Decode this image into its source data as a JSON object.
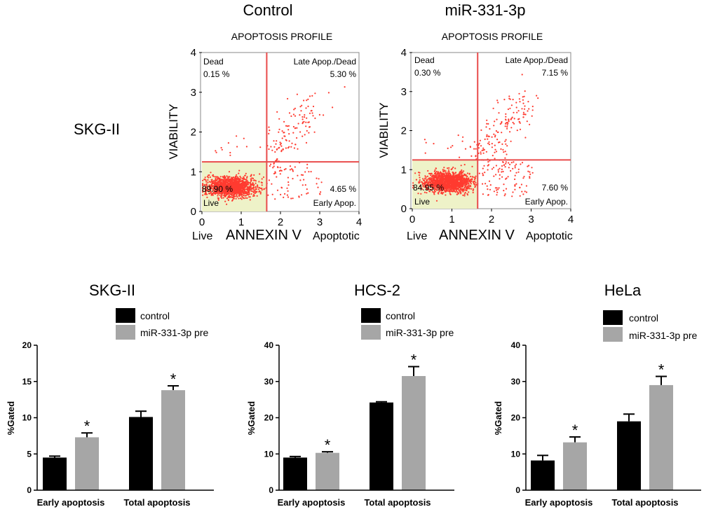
{
  "chart_data": [
    {
      "type": "scatter",
      "title": "Control",
      "subtitle": "APOPTOSIS PROFILE",
      "row_label": "SKG-II",
      "xlabel": "ANNEXIN V",
      "x_left_label": "Live",
      "x_right_label": "Apoptotic",
      "ylabel": "VIABILITY",
      "xlim": [
        0,
        4
      ],
      "ylim": [
        0,
        4
      ],
      "x_ticks": [
        "0",
        "1",
        "2",
        "3",
        "4"
      ],
      "y_ticks": [
        "0",
        "1",
        "2",
        "3",
        "4"
      ],
      "gates": {
        "x": 1.65,
        "y": 1.25
      },
      "quadrants": {
        "dead": {
          "label": "Dead",
          "pct": "0.15 %"
        },
        "late": {
          "label": "Late Apop./Dead",
          "pct": "5.30 %"
        },
        "live": {
          "label": "Live",
          "pct": "89.90 %"
        },
        "early": {
          "label": "Early Apop.",
          "pct": "4.65 %"
        }
      },
      "population": {
        "live_center": [
          0.75,
          0.62
        ],
        "late_spread": "moderate"
      },
      "colors": {
        "points": "#ff3b30",
        "gates": "#e94b4b",
        "live_fill": "#eef2c8"
      }
    },
    {
      "type": "scatter",
      "title": "miR-331-3p",
      "subtitle": "APOPTOSIS PROFILE",
      "xlabel": "ANNEXIN V",
      "x_left_label": "Live",
      "x_right_label": "Apoptotic",
      "ylabel": "VIABILITY",
      "xlim": [
        0,
        4
      ],
      "ylim": [
        0,
        4
      ],
      "x_ticks": [
        "0",
        "1",
        "2",
        "3",
        "4"
      ],
      "y_ticks": [
        "0",
        "1",
        "2",
        "3",
        "4"
      ],
      "gates": {
        "x": 1.65,
        "y": 1.25
      },
      "quadrants": {
        "dead": {
          "label": "Dead",
          "pct": "0.30 %"
        },
        "late": {
          "label": "Late Apop./Dead",
          "pct": "7.15 %"
        },
        "live": {
          "label": "Live",
          "pct": "84.95 %"
        },
        "early": {
          "label": "Early Apop.",
          "pct": "7.60 %"
        }
      },
      "population": {
        "live_center": [
          0.9,
          0.68
        ],
        "late_spread": "higher"
      },
      "colors": {
        "points": "#ff3b30",
        "gates": "#e94b4b",
        "live_fill": "#eef2c8"
      }
    },
    {
      "type": "bar",
      "title": "SKG-II",
      "categories": [
        "Early apoptosis",
        "Total apoptosis"
      ],
      "series": [
        {
          "name": "control",
          "values": [
            4.5,
            10.1
          ],
          "errors": [
            0.2,
            0.8
          ],
          "color": "#000000"
        },
        {
          "name": "miR-331-3p pre",
          "values": [
            7.3,
            13.8
          ],
          "errors": [
            0.6,
            0.6
          ],
          "color": "#a6a6a6"
        }
      ],
      "significance": [
        "*",
        "*"
      ],
      "ylabel": "%Gated",
      "ylim": [
        0,
        20
      ],
      "y_ticks": [
        "0",
        "5",
        "10",
        "15",
        "20"
      ]
    },
    {
      "type": "bar",
      "title": "HCS-2",
      "categories": [
        "Early apoptosis",
        "Total apoptosis"
      ],
      "series": [
        {
          "name": "control",
          "values": [
            9.0,
            24.2
          ],
          "errors": [
            0.3,
            0.2
          ],
          "color": "#000000"
        },
        {
          "name": "miR-331-3p pre",
          "values": [
            10.3,
            31.5
          ],
          "errors": [
            0.3,
            2.6
          ],
          "color": "#a6a6a6"
        }
      ],
      "significance": [
        "*",
        "*"
      ],
      "ylabel": "%Gated",
      "ylim": [
        0,
        40
      ],
      "y_ticks": [
        "0",
        "10",
        "20",
        "30",
        "40"
      ]
    },
    {
      "type": "bar",
      "title": "HeLa",
      "categories": [
        "Early apoptosis",
        "Total apoptosis"
      ],
      "series": [
        {
          "name": "control",
          "values": [
            8.2,
            19.0
          ],
          "errors": [
            1.4,
            2.0
          ],
          "color": "#000000"
        },
        {
          "name": "miR-331-3p pre",
          "values": [
            13.2,
            29.0
          ],
          "errors": [
            1.5,
            2.4
          ],
          "color": "#a6a6a6"
        }
      ],
      "significance": [
        "*",
        "*"
      ],
      "ylabel": "%Gated",
      "ylim": [
        0,
        40
      ],
      "y_ticks": [
        "0",
        "10",
        "20",
        "30",
        "40"
      ]
    }
  ]
}
